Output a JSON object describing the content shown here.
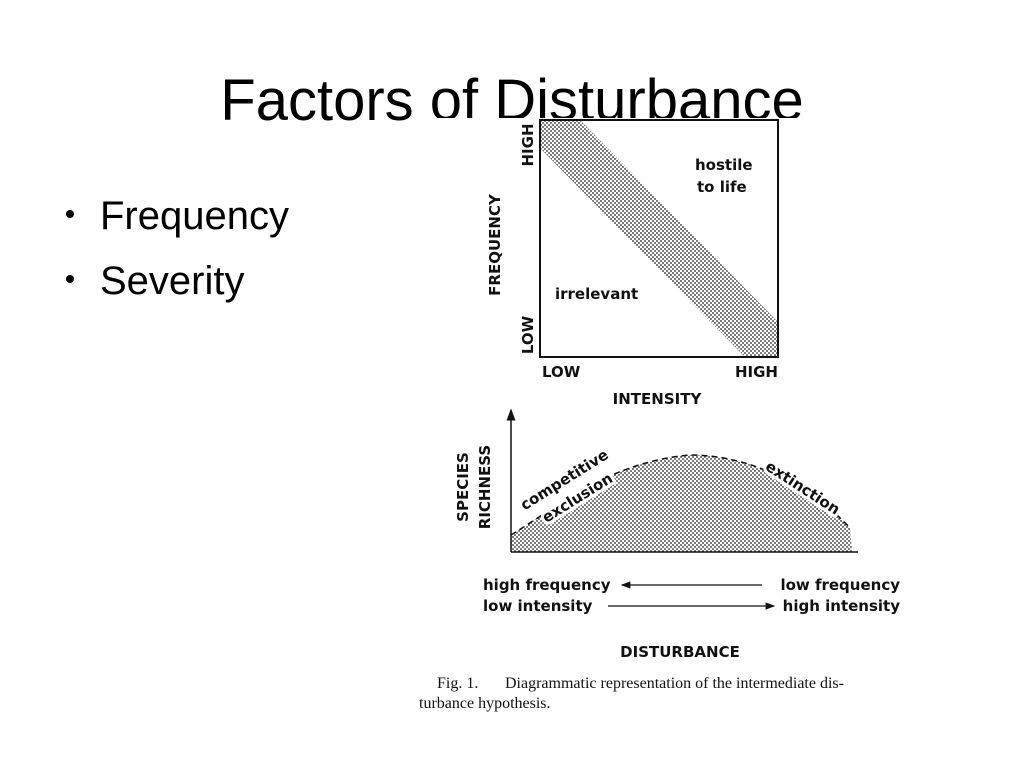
{
  "slide": {
    "title": "Factors of Disturbance",
    "bullets": [
      "Frequency",
      "Severity"
    ],
    "figure": {
      "top_plot": {
        "y_high": "HIGH",
        "y_low": "LOW",
        "y_label": "FREQUENCY",
        "x_low": "LOW",
        "x_high": "HIGH",
        "x_label": "INTENSITY",
        "region_upper": [
          "hostile",
          "to life"
        ],
        "region_lower": "irrelevant"
      },
      "bottom_plot": {
        "y_label": [
          "SPECIES",
          "RICHNESS"
        ],
        "left_region": [
          "competitive",
          "exclusion"
        ],
        "right_region": "extinction",
        "scale_left": [
          "high frequency",
          "low intensity"
        ],
        "scale_right": [
          "low frequency",
          "high intensity"
        ],
        "x_label": "DISTURBANCE"
      },
      "caption": {
        "label": "Fig. 1.",
        "lines": [
          "Diagrammatic representation of the intermediate dis-",
          "turbance hypothesis."
        ]
      }
    }
  }
}
